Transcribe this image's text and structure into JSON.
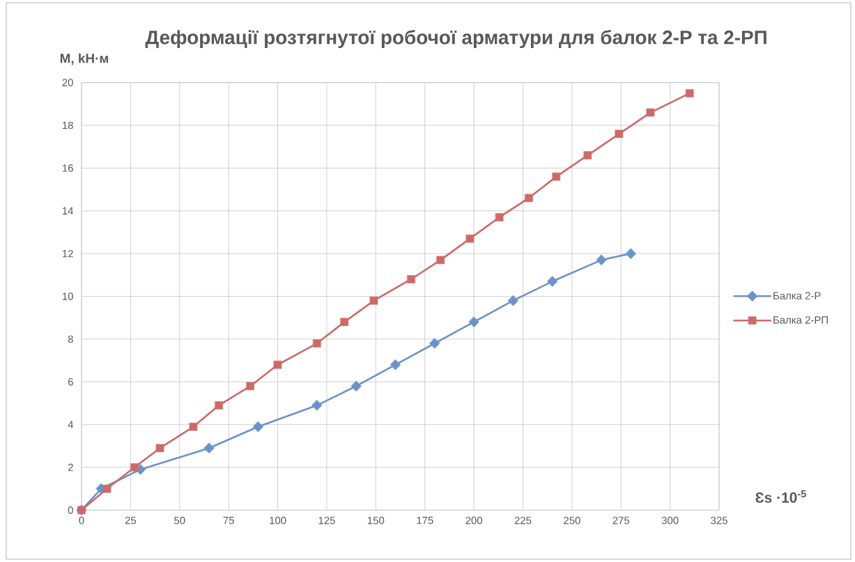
{
  "chart_data": {
    "type": "line",
    "title": "Деформації розтягнутої робочої арматури для балок 2-Р та 2-РП",
    "xlabel": "Ɛs ·10$^{-5}$",
    "ylabel": "М, kН·м",
    "xlim": [
      0,
      325
    ],
    "xticks": [
      0,
      25,
      50,
      75,
      100,
      125,
      150,
      175,
      200,
      225,
      250,
      275,
      300,
      325
    ],
    "ylim": [
      0,
      20
    ],
    "yticks": [
      0,
      2,
      4,
      6,
      8,
      10,
      12,
      14,
      16,
      18,
      20
    ],
    "grid": true,
    "legend": "right",
    "line_style": "solid",
    "series": [
      {
        "name": "Балка 2-Р",
        "color": "#6b93c9",
        "marker": "diamond",
        "x": [
          0,
          10,
          30,
          65,
          90,
          120,
          140,
          160,
          180,
          200,
          220,
          240,
          265,
          280
        ],
        "values": [
          0,
          1.0,
          1.9,
          2.9,
          3.9,
          4.9,
          5.8,
          6.8,
          7.8,
          8.8,
          9.8,
          10.7,
          11.7,
          12.0
        ]
      },
      {
        "name": "Балка 2-РП",
        "color": "#cd6a68",
        "marker": "square",
        "x": [
          0,
          13,
          27,
          40,
          57,
          70,
          86,
          100,
          120,
          134,
          149,
          168,
          183,
          198,
          213,
          228,
          242,
          258,
          274,
          290,
          310
        ],
        "values": [
          0,
          1.0,
          2.0,
          2.9,
          3.9,
          4.9,
          5.8,
          6.8,
          7.8,
          8.8,
          9.8,
          10.8,
          11.7,
          12.7,
          13.7,
          14.6,
          15.6,
          16.6,
          17.6,
          18.6,
          19.5
        ]
      }
    ]
  }
}
